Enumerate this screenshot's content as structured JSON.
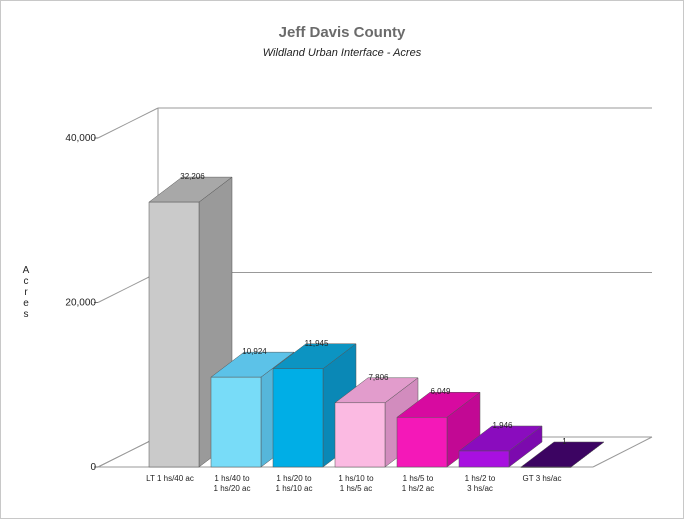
{
  "chart_data": {
    "type": "bar",
    "title": "Jeff Davis County",
    "subtitle": "Wildland Urban Interface - Acres",
    "ylabel": "Acres",
    "xlabel": "",
    "ylim": [
      0,
      40000
    ],
    "yticks": [
      0,
      20000,
      40000
    ],
    "ytick_labels": [
      "0",
      "20,000",
      "40,000"
    ],
    "grid": true,
    "categories": [
      [
        "LT 1 hs/40 ac"
      ],
      [
        "1 hs/40 to",
        "1 hs/20 ac"
      ],
      [
        "1 hs/20 to",
        "1 hs/10 ac"
      ],
      [
        "1 hs/10 to",
        "1 hs/5 ac"
      ],
      [
        "1 hs/5 to",
        "1 hs/2 ac"
      ],
      [
        "1 hs/2 to",
        "3 hs/ac"
      ],
      [
        "GT 3 hs/ac"
      ]
    ],
    "values": [
      32206,
      10924,
      11945,
      7806,
      6049,
      1946,
      1
    ],
    "value_labels": [
      "32,206",
      "10,924",
      "11,945",
      "7,806",
      "6,049",
      "1,946",
      "1"
    ],
    "colors": [
      {
        "front": "#cacaca",
        "top": "#a8a8a8",
        "side": "#9a9a9a"
      },
      {
        "front": "#78dcf8",
        "top": "#5cc2e8",
        "side": "#56b6da"
      },
      {
        "front": "#00aee6",
        "top": "#0c94c2",
        "side": "#0a88b6"
      },
      {
        "front": "#fbbae2",
        "top": "#e29ccc",
        "side": "#d28cbe"
      },
      {
        "front": "#f418b8",
        "top": "#d70aa0",
        "side": "#c20894"
      },
      {
        "front": "#a810e0",
        "top": "#8a0cbe",
        "side": "#7c0aae"
      },
      {
        "front": "#4a0874",
        "top": "#3c0462",
        "side": "#300352"
      }
    ]
  }
}
